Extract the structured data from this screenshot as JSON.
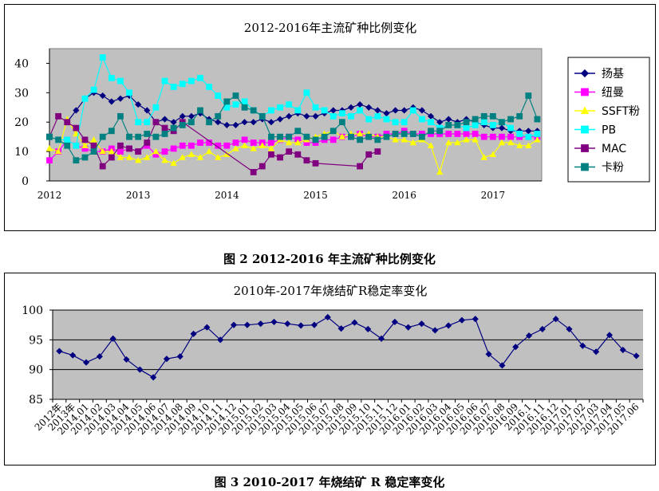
{
  "captions": {
    "fig2": "图 2    2012-2016 年主流矿种比例变化",
    "fig3": "图 3    2010-2017 年烧结矿 R 稳定率变化"
  },
  "colors": {
    "plot_bg": "#c0c0c0",
    "fig3_line": "#000080",
    "扬基": "#000080",
    "纽曼": "#ff00ff",
    "SSFT粉": "#ffff00",
    "PB": "#00ffff",
    "MAC": "#800080",
    "卡粉": "#008080"
  },
  "chart_data": [
    {
      "type": "line",
      "title": "2012-2016年主流矿种比例变化",
      "xlabel": "",
      "ylabel": "",
      "x_tick_labels": [
        "2012",
        "2013",
        "2014",
        "2015",
        "2016",
        "2017"
      ],
      "x_range": [
        2012.0,
        2017.55
      ],
      "ylim": [
        0,
        45
      ],
      "y_ticks": [
        0,
        10,
        20,
        30,
        40
      ],
      "grid": false,
      "legend_position": "right",
      "series": [
        {
          "name": "扬基",
          "marker": "diamond",
          "x": [
            2012.2,
            2012.3,
            2012.4,
            2012.5,
            2012.6,
            2012.7,
            2012.8,
            2012.9,
            2013.0,
            2013.1,
            2013.2,
            2013.3,
            2013.4,
            2013.5,
            2013.6,
            2013.7,
            2013.8,
            2013.9,
            2014.0,
            2014.1,
            2014.2,
            2014.3,
            2014.4,
            2014.5,
            2014.6,
            2014.7,
            2014.8,
            2014.9,
            2015.0,
            2015.1,
            2015.2,
            2015.3,
            2015.4,
            2015.5,
            2015.6,
            2015.7,
            2015.8,
            2015.9,
            2016.0,
            2016.1,
            2016.2,
            2016.3,
            2016.4,
            2016.5,
            2016.6,
            2016.7,
            2016.8,
            2016.9,
            2017.0,
            2017.1,
            2017.2,
            2017.3,
            2017.4,
            2017.5
          ],
          "y": [
            20,
            24,
            28,
            30,
            29,
            27,
            28,
            29,
            26,
            24,
            20,
            21,
            20,
            22,
            22,
            23,
            21,
            20,
            19,
            19,
            20,
            20,
            21,
            20,
            21,
            22,
            23,
            22,
            22,
            23,
            24,
            24,
            25,
            26,
            25,
            24,
            23,
            24,
            24,
            25,
            24,
            22,
            20,
            21,
            20,
            21,
            20,
            19,
            18,
            18,
            17,
            17,
            17,
            17
          ]
        },
        {
          "name": "纽曼",
          "marker": "square",
          "x": [
            2012.0,
            2012.1,
            2012.2,
            2012.3,
            2012.4,
            2012.5,
            2012.6,
            2012.7,
            2012.8,
            2012.9,
            2013.0,
            2013.1,
            2013.2,
            2013.3,
            2013.4,
            2013.5,
            2013.6,
            2013.7,
            2013.8,
            2013.9,
            2014.0,
            2014.1,
            2014.2,
            2014.3,
            2014.4,
            2014.5,
            2014.6,
            2014.7,
            2014.8,
            2014.9,
            2015.0,
            2015.1,
            2015.2,
            2015.3,
            2015.4,
            2015.5,
            2015.6,
            2015.7,
            2015.8,
            2015.9,
            2016.0,
            2016.1,
            2016.2,
            2016.3,
            2016.4,
            2016.5,
            2016.6,
            2016.7,
            2016.8,
            2016.9,
            2017.0,
            2017.1,
            2017.2,
            2017.3,
            2017.4,
            2017.5
          ],
          "y": [
            7,
            10,
            14,
            12,
            11,
            10,
            10,
            11,
            10,
            11,
            10,
            12,
            9,
            10,
            11,
            12,
            12,
            13,
            13,
            12,
            12,
            13,
            14,
            13,
            13,
            13,
            14,
            15,
            14,
            13,
            13,
            14,
            14,
            15,
            15,
            16,
            15,
            15,
            16,
            16,
            17,
            16,
            16,
            16,
            16,
            16,
            16,
            16,
            16,
            15,
            15,
            15,
            15,
            15,
            15,
            15
          ]
        },
        {
          "name": "SSFT粉",
          "marker": "triangle",
          "x": [
            2012.0,
            2012.1,
            2012.2,
            2012.3,
            2012.4,
            2012.5,
            2012.6,
            2012.7,
            2012.8,
            2012.9,
            2013.0,
            2013.1,
            2013.2,
            2013.3,
            2013.4,
            2013.5,
            2013.6,
            2013.7,
            2013.8,
            2013.9,
            2014.0,
            2014.1,
            2014.2,
            2014.3,
            2014.4,
            2014.5,
            2014.6,
            2014.7,
            2014.8,
            2014.9,
            2015.0,
            2015.1,
            2015.2,
            2015.3,
            2015.4,
            2015.5,
            2015.6,
            2015.7,
            2015.8,
            2015.9,
            2016.0,
            2016.1,
            2016.2,
            2016.3,
            2016.4,
            2016.5,
            2016.6,
            2016.7,
            2016.8,
            2016.9,
            2017.0,
            2017.1,
            2017.2,
            2017.3,
            2017.4,
            2017.5
          ],
          "y": [
            11,
            10,
            21,
            16,
            12,
            14,
            10,
            10,
            8,
            8,
            7,
            8,
            10,
            7,
            6,
            8,
            9,
            8,
            10,
            8,
            9,
            11,
            12,
            11,
            12,
            11,
            14,
            13,
            13,
            14,
            15,
            16,
            17,
            15,
            16,
            16,
            16,
            15,
            15,
            14,
            14,
            13,
            14,
            12,
            3,
            13,
            13,
            14,
            14,
            8,
            9,
            13,
            13,
            12,
            12,
            14
          ]
        },
        {
          "name": "PB",
          "marker": "square",
          "x": [
            2012.0,
            2012.1,
            2012.2,
            2012.3,
            2012.4,
            2012.5,
            2012.6,
            2012.7,
            2012.8,
            2012.9,
            2013.0,
            2013.1,
            2013.2,
            2013.3,
            2013.4,
            2013.5,
            2013.6,
            2013.7,
            2013.8,
            2013.9,
            2014.0,
            2014.1,
            2014.2,
            2014.3,
            2014.4,
            2014.5,
            2014.6,
            2014.7,
            2014.8,
            2014.9,
            2015.0,
            2015.1,
            2015.2,
            2015.3,
            2015.4,
            2015.5,
            2015.6,
            2015.7,
            2015.8,
            2015.9,
            2016.0,
            2016.1,
            2016.2,
            2016.3,
            2016.4,
            2016.5,
            2016.6,
            2016.7,
            2016.8,
            2016.9,
            2017.0,
            2017.1,
            2017.2,
            2017.3,
            2017.4,
            2017.5
          ],
          "y": [
            15,
            14,
            14,
            12,
            28,
            31,
            42,
            35,
            34,
            30,
            20,
            20,
            25,
            34,
            32,
            33,
            34,
            35,
            32,
            29,
            25,
            26,
            27,
            24,
            22,
            24,
            25,
            26,
            24,
            30,
            25,
            24,
            22,
            23,
            22,
            24,
            21,
            22,
            21,
            20,
            20,
            24,
            21,
            20,
            18,
            19,
            19,
            18,
            19,
            20,
            19,
            20,
            18,
            16,
            15,
            16
          ]
        },
        {
          "name": "MAC",
          "marker": "square",
          "x": [
            2012.0,
            2012.1,
            2012.2,
            2012.3,
            2012.4,
            2012.5,
            2012.6,
            2012.7,
            2012.8,
            2012.9,
            2013.0,
            2013.1,
            2013.2,
            2013.3,
            2013.4,
            2013.5,
            2014.3,
            2014.4,
            2014.5,
            2014.6,
            2014.7,
            2014.8,
            2014.9,
            2015.0,
            2015.5,
            2015.6,
            2015.7
          ],
          "y": [
            15,
            22,
            20,
            18,
            14,
            12,
            5,
            8,
            12,
            11,
            10,
            13,
            20,
            18,
            17,
            20,
            3,
            5,
            9,
            8,
            10,
            9,
            7,
            6,
            5,
            9,
            10
          ]
        },
        {
          "name": "卡粉",
          "marker": "square",
          "x": [
            2012.0,
            2012.1,
            2012.2,
            2012.3,
            2012.4,
            2012.5,
            2012.6,
            2012.7,
            2012.8,
            2012.9,
            2013.0,
            2013.1,
            2013.2,
            2013.3,
            2013.4,
            2013.5,
            2013.6,
            2013.7,
            2013.8,
            2013.9,
            2014.0,
            2014.1,
            2014.2,
            2014.3,
            2014.4,
            2014.5,
            2014.6,
            2014.7,
            2014.8,
            2014.9,
            2015.0,
            2015.1,
            2015.2,
            2015.3,
            2015.4,
            2015.5,
            2015.6,
            2015.7,
            2015.8,
            2015.9,
            2016.0,
            2016.1,
            2016.2,
            2016.3,
            2016.4,
            2016.5,
            2016.6,
            2016.7,
            2016.8,
            2016.9,
            2017.0,
            2017.1,
            2017.2,
            2017.3,
            2017.4,
            2017.5
          ],
          "y": [
            15,
            14,
            12,
            7,
            8,
            10,
            15,
            17,
            22,
            15,
            15,
            16,
            15,
            16,
            18,
            19,
            20,
            24,
            20,
            22,
            27,
            29,
            25,
            24,
            22,
            15,
            15,
            15,
            17,
            15,
            14,
            15,
            17,
            20,
            15,
            14,
            15,
            14,
            15,
            16,
            16,
            16,
            15,
            17,
            17,
            19,
            19,
            20,
            21,
            22,
            22,
            20,
            21,
            22,
            29,
            21
          ]
        }
      ]
    },
    {
      "type": "line",
      "title": "2010年-2017年烧结矿R稳定率变化",
      "xlabel": "",
      "ylabel": "",
      "categories": [
        "2012年",
        "2013年",
        "2014.01",
        "2014.02",
        "2014.03",
        "2014.04",
        "2014.05",
        "2014.06",
        "2014.07",
        "2014.08",
        "2014.09",
        "2014.10",
        "2014.11",
        "2014.12",
        "2015.01",
        "2015.02",
        "2015.03",
        "2015.04",
        "2015.05",
        "2015.06",
        "2015.07",
        "2015.08",
        "2015.09",
        "2015.10",
        "2015.11",
        "2015.12",
        "2016.01",
        "2016.02",
        "2016.03",
        "2016.04",
        "2016.05",
        "2016.06",
        "2016.07",
        "2016.08",
        "2016.09",
        "2016.1",
        "2016.11",
        "2016.12",
        "2017.01",
        "2017.02",
        "2017.03",
        "2017.04",
        "2017.05",
        "2017.06"
      ],
      "ylim": [
        85,
        100
      ],
      "y_ticks": [
        85,
        90,
        95,
        100
      ],
      "grid": true,
      "series": [
        {
          "marker": "diamond",
          "values": [
            93.1,
            92.4,
            91.2,
            92.2,
            95.2,
            91.7,
            90.0,
            88.7,
            91.8,
            92.2,
            96.0,
            97.1,
            95.0,
            97.5,
            97.5,
            97.7,
            98.0,
            97.7,
            97.4,
            97.5,
            98.8,
            96.9,
            97.9,
            96.8,
            95.2,
            98.0,
            97.1,
            97.7,
            96.6,
            97.4,
            98.3,
            98.5,
            92.6,
            90.7,
            93.8,
            95.7,
            96.8,
            98.5,
            96.8,
            94.0,
            93.0,
            95.8,
            93.3,
            92.3
          ]
        }
      ]
    }
  ]
}
